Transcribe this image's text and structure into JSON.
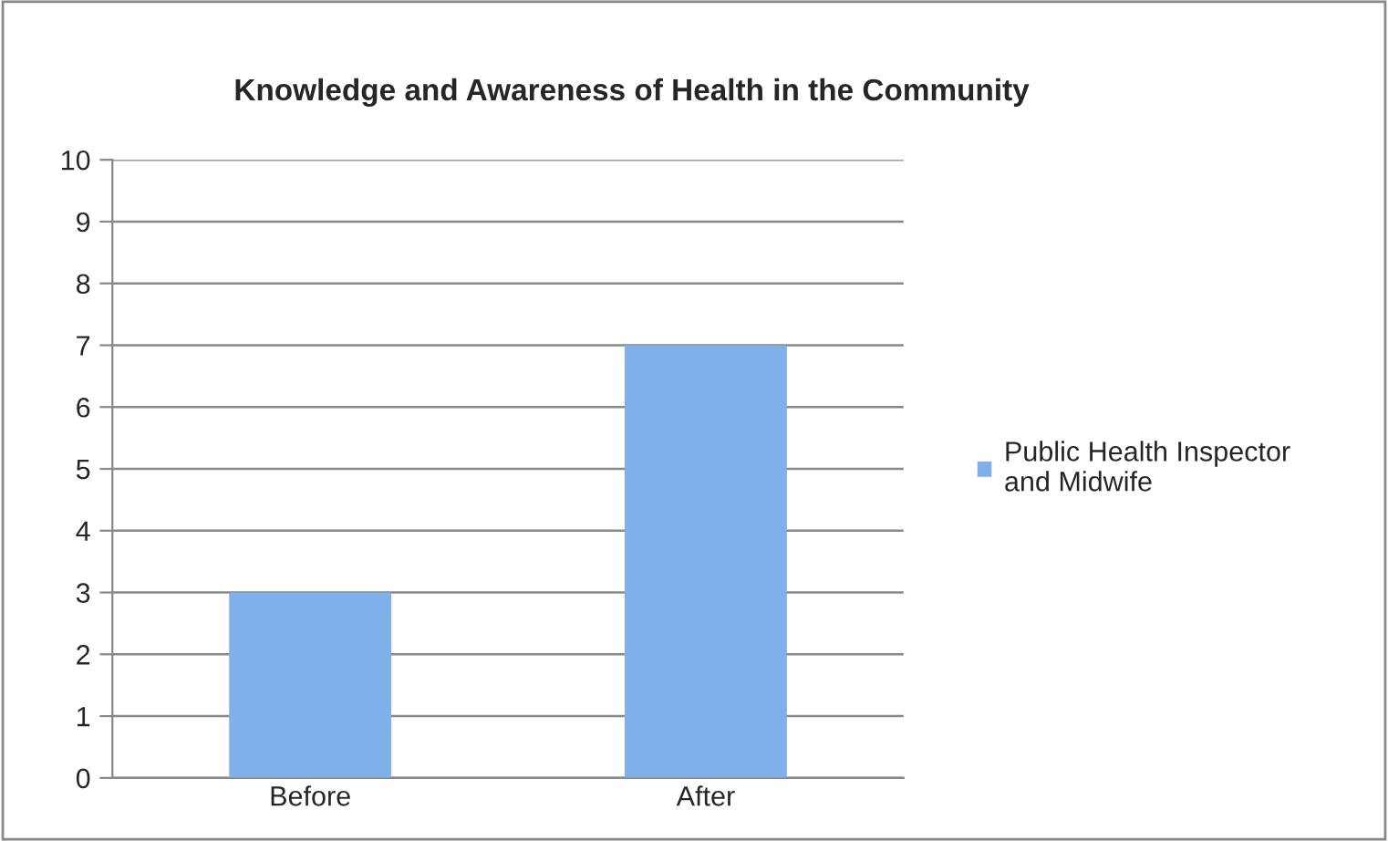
{
  "chart_data": {
    "type": "bar",
    "title": "Knowledge and Awareness of Health in the Community",
    "categories": [
      "Before",
      "After"
    ],
    "series": [
      {
        "name": "Public Health Inspector and Midwife",
        "color": "#7fb0ea",
        "values": [
          3,
          7
        ]
      }
    ],
    "ylim": [
      0,
      10
    ],
    "yticks": [
      0,
      1,
      2,
      3,
      4,
      5,
      6,
      7,
      8,
      9,
      10
    ],
    "grid": "y",
    "legend": "right"
  }
}
